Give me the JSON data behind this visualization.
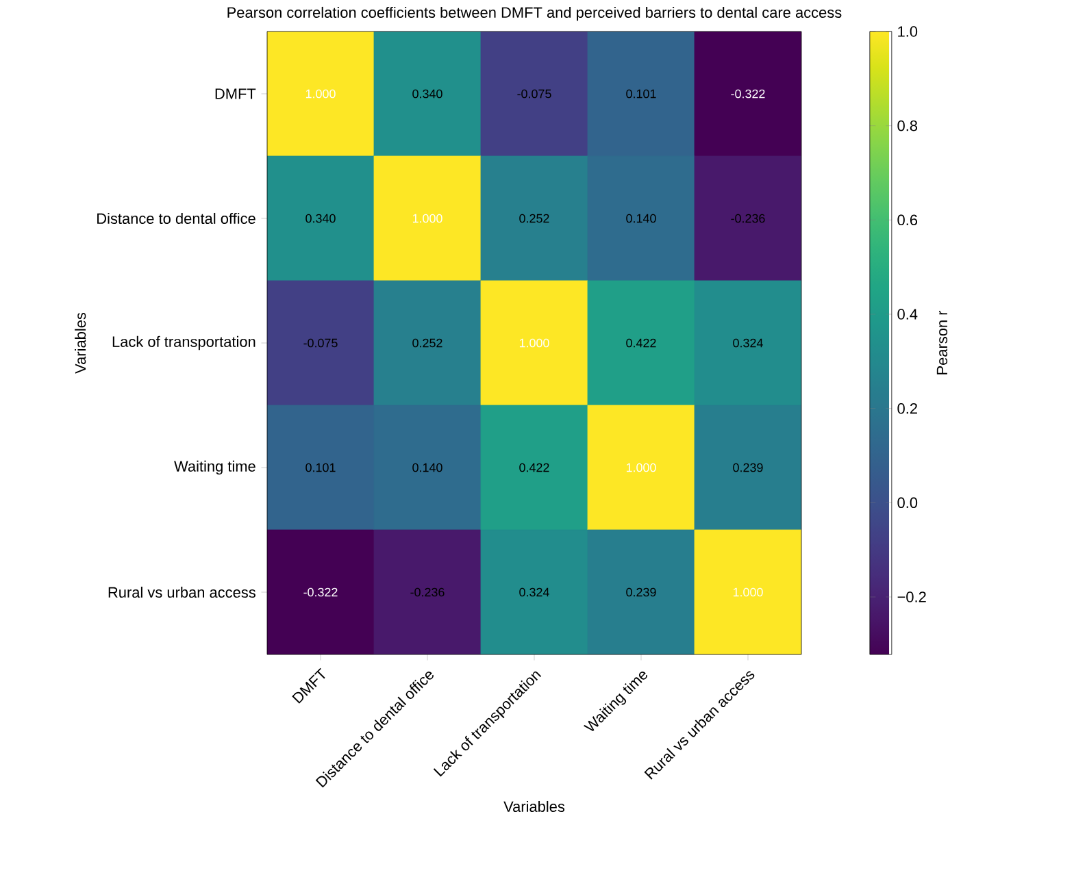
{
  "chart_data": {
    "type": "heatmap",
    "title": "Pearson correlation coefficients between DMFT and perceived barriers to dental care access",
    "xlabel": "Variables",
    "ylabel": "Variables",
    "clabel": "Pearson r",
    "categories": [
      "DMFT",
      "Distance to dental office",
      "Lack of transportation",
      "Waiting time",
      "Rural vs urban access"
    ],
    "y_categories": [
      "DMFT",
      "Distance to dental office",
      "Lack of transportation",
      "Waiting time",
      "Rural vs urban access"
    ],
    "cells": [
      [
        1.0,
        0.34,
        -0.075,
        0.101,
        -0.322
      ],
      [
        0.34,
        1.0,
        0.252,
        0.14,
        -0.236
      ],
      [
        -0.075,
        0.252,
        1.0,
        0.422,
        0.324
      ],
      [
        0.101,
        0.14,
        0.422,
        1.0,
        0.239
      ],
      [
        -0.322,
        -0.236,
        0.324,
        0.239,
        1.0
      ]
    ],
    "cell_labels": [
      [
        "1.000",
        "0.340",
        "-0.075",
        "0.101",
        "-0.322"
      ],
      [
        "0.340",
        "1.000",
        "0.252",
        "0.140",
        "-0.236"
      ],
      [
        "-0.075",
        "0.252",
        "1.000",
        "0.422",
        "0.324"
      ],
      [
        "0.101",
        "0.140",
        "0.422",
        "1.000",
        "0.239"
      ],
      [
        "-0.322",
        "-0.236",
        "0.324",
        "0.239",
        "1.000"
      ]
    ],
    "clim": [
      -0.322,
      1.0
    ],
    "cticks": [
      {
        "value": -0.2,
        "label": "−0.2"
      },
      {
        "value": 0.0,
        "label": "0.0"
      },
      {
        "value": 0.2,
        "label": "0.2"
      },
      {
        "value": 0.4,
        "label": "0.4"
      },
      {
        "value": 0.6,
        "label": "0.6"
      },
      {
        "value": 0.8,
        "label": "0.8"
      },
      {
        "value": 1.0,
        "label": "1.0"
      }
    ]
  }
}
